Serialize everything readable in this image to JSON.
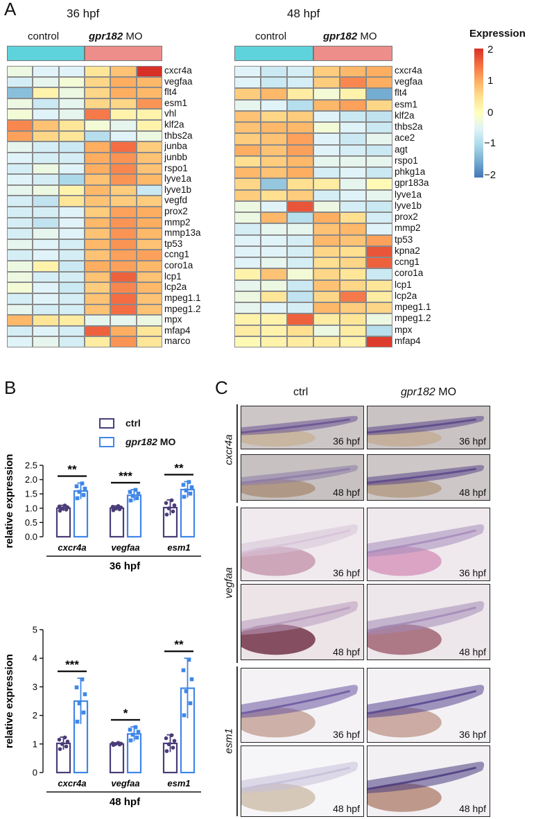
{
  "panel_a": {
    "letter": "A",
    "scale": {
      "title": "Expression",
      "ticks": [
        "2",
        "1",
        "0",
        "−1",
        "−2"
      ]
    },
    "heatmaps": [
      {
        "title": "36 hpf",
        "group_control": "control",
        "group_mo_gene": "gpr182",
        "group_mo_suffix": " MO",
        "genes": [
          "cxcr4a",
          "vegfaa",
          "flt4",
          "esm1",
          "vhl",
          "klf2a",
          "thbs2a",
          "junba",
          "junbb",
          "rspo1",
          "lyve1a",
          "lyve1b",
          "vegfd",
          "prox2",
          "mmp2",
          "mmp13a",
          "tp53",
          "ccng1",
          "coro1a",
          "lcp1",
          "lcp2a",
          "mpeg1.1",
          "mpeg1.2",
          "mpx",
          "mfap4",
          "marco"
        ],
        "values": [
          [
            -0.3,
            -0.5,
            -0.5,
            0.4,
            0.8,
            2.0
          ],
          [
            -0.6,
            -0.4,
            -0.2,
            0.6,
            1.0,
            0.9
          ],
          [
            -1.3,
            0.2,
            -0.3,
            0.6,
            1.0,
            0.9
          ],
          [
            -0.3,
            -0.7,
            -0.4,
            0.6,
            0.6,
            1.2
          ],
          [
            -0.2,
            -0.5,
            -0.4,
            1.4,
            0.2,
            0.2
          ],
          [
            1.3,
            0.8,
            0.4,
            -0.2,
            -0.4,
            0.2
          ],
          [
            1.1,
            0.6,
            0.4,
            -0.9,
            -0.5,
            -0.3
          ],
          [
            -0.4,
            -0.6,
            -0.7,
            1.0,
            1.5,
            0.7
          ],
          [
            -0.5,
            -0.6,
            -0.6,
            1.0,
            1.2,
            0.8
          ],
          [
            -0.6,
            -0.3,
            -0.5,
            1.0,
            1.3,
            0.8
          ],
          [
            -0.5,
            -0.6,
            -1.0,
            0.8,
            1.2,
            0.9
          ],
          [
            -0.4,
            -0.3,
            0.2,
            0.9,
            0.7,
            -0.7
          ],
          [
            -0.6,
            -0.8,
            0.4,
            0.8,
            0.7,
            0.7
          ],
          [
            -0.6,
            -0.6,
            -0.5,
            0.7,
            1.1,
            1.0
          ],
          [
            -0.6,
            -0.8,
            -0.5,
            0.9,
            1.2,
            1.0
          ],
          [
            -0.6,
            -0.4,
            -0.5,
            0.8,
            1.2,
            0.9
          ],
          [
            -0.4,
            -0.5,
            -0.6,
            0.9,
            1.2,
            0.8
          ],
          [
            -0.6,
            -0.5,
            -0.6,
            0.8,
            1.1,
            1.1
          ],
          [
            -0.3,
            0.2,
            -0.7,
            1.0,
            1.1,
            0.9
          ],
          [
            -0.3,
            -0.6,
            -0.6,
            0.8,
            1.6,
            0.8
          ],
          [
            -0.2,
            -0.5,
            -0.7,
            0.7,
            1.3,
            0.9
          ],
          [
            -0.6,
            -0.5,
            -0.6,
            0.8,
            1.5,
            0.8
          ],
          [
            -0.4,
            -0.6,
            -0.6,
            0.8,
            1.5,
            0.8
          ],
          [
            0.9,
            0.4,
            0.3,
            -0.4,
            -0.4,
            -0.3
          ],
          [
            -0.6,
            -0.5,
            -0.6,
            1.6,
            1.0,
            0.4
          ],
          [
            -0.5,
            -0.4,
            -0.6,
            0.3,
            1.2,
            0.4
          ]
        ]
      },
      {
        "title": "48 hpf",
        "group_control": "control",
        "group_mo_gene": "gpr182",
        "group_mo_suffix": " MO",
        "genes": [
          "cxcr4a",
          "vegfaa",
          "flt4",
          "esm1",
          "klf2a",
          "thbs2a",
          "ace2",
          "agt",
          "rspo1",
          "phkg1a",
          "gpr183a",
          "lyve1a",
          "lyve1b",
          "prox2",
          "mmp2",
          "tp53",
          "kpna2",
          "ccng1",
          "coro1a",
          "lcp1",
          "lcp2a",
          "mpeg1.1",
          "mpeg1.2",
          "mpx",
          "mfap4"
        ],
        "values": [
          [
            -0.5,
            -0.7,
            -0.6,
            0.7,
            0.9,
            1.0
          ],
          [
            -0.5,
            -0.7,
            -0.6,
            0.7,
            1.3,
            1.0
          ],
          [
            0.7,
            0.9,
            0.3,
            -0.2,
            0.2,
            -1.5
          ],
          [
            -0.4,
            -0.5,
            -0.9,
            0.9,
            1.1,
            0.6
          ],
          [
            0.8,
            0.6,
            0.7,
            -0.5,
            -0.7,
            -0.8
          ],
          [
            0.8,
            0.9,
            0.9,
            -0.2,
            -0.5,
            -0.7
          ],
          [
            0.7,
            0.8,
            1.1,
            -0.5,
            -0.7,
            -0.4
          ],
          [
            1.0,
            0.8,
            1.1,
            -0.5,
            -0.6,
            -0.7
          ],
          [
            0.5,
            0.7,
            0.9,
            -0.4,
            -0.4,
            -0.4
          ],
          [
            0.9,
            0.8,
            1.0,
            -0.6,
            -0.5,
            -0.7
          ],
          [
            0.6,
            -1.2,
            0.5,
            0.3,
            -0.4,
            0.1
          ],
          [
            0.7,
            0.5,
            0.7,
            -0.6,
            -0.5,
            -0.4
          ],
          [
            -0.3,
            -0.5,
            1.7,
            -0.3,
            -0.6,
            -0.7
          ],
          [
            -0.3,
            0.9,
            -0.9,
            1.0,
            0.5,
            -0.6
          ],
          [
            -0.6,
            -0.4,
            -0.4,
            0.8,
            0.9,
            -0.5
          ],
          [
            -0.5,
            -0.5,
            -0.6,
            0.9,
            0.8,
            1.1
          ],
          [
            -0.5,
            -0.5,
            -0.6,
            0.6,
            0.5,
            1.7
          ],
          [
            -0.5,
            -0.4,
            -0.6,
            0.5,
            0.6,
            1.6
          ],
          [
            0.2,
            0.8,
            -0.2,
            0.6,
            0.4,
            -0.7
          ],
          [
            -0.4,
            -0.3,
            -0.7,
            0.8,
            0.6,
            0.4
          ],
          [
            -0.3,
            0.4,
            -0.8,
            0.6,
            1.4,
            0.3
          ],
          [
            -0.4,
            -0.5,
            -0.6,
            0.9,
            0.7,
            0.6
          ],
          [
            0.2,
            0.2,
            1.6,
            0.3,
            0.4,
            -0.3
          ],
          [
            0.3,
            0.2,
            0.5,
            -0.3,
            0.3,
            -0.9
          ],
          [
            0.1,
            0.2,
            0.3,
            0.3,
            0.2,
            1.9
          ]
        ]
      }
    ]
  },
  "panel_b": {
    "letter": "B",
    "legend": {
      "ctrl": "ctrl",
      "mo_gene": "gpr182",
      "mo_suffix": " MO"
    },
    "colors": {
      "ctrl": "#4a3c78",
      "mo": "#3f86e8"
    },
    "chart_data": [
      {
        "type": "bar",
        "title": "36 hpf",
        "ylabel": "relative expression",
        "ylim": [
          0,
          2.5
        ],
        "yticks": [
          "0.0",
          "0.5",
          "1.0",
          "1.5",
          "2.0",
          "2.5"
        ],
        "categories": [
          "cxcr4a",
          "vegfaa",
          "esm1"
        ],
        "series": [
          {
            "name": "ctrl",
            "values": [
              1.0,
              1.0,
              1.02
            ],
            "errors": [
              0.1,
              0.08,
              0.27
            ]
          },
          {
            "name": "gpr182 MO",
            "values": [
              1.6,
              1.45,
              1.65
            ],
            "errors": [
              0.28,
              0.2,
              0.28
            ]
          }
        ],
        "significance": [
          "**",
          "***",
          "**"
        ]
      },
      {
        "type": "bar",
        "title": "48 hpf",
        "ylabel": "relative expression",
        "ylim": [
          0,
          5
        ],
        "yticks": [
          "0",
          "1",
          "2",
          "3",
          "4",
          "5"
        ],
        "categories": [
          "cxcr4a",
          "vegfaa",
          "esm1"
        ],
        "series": [
          {
            "name": "ctrl",
            "values": [
              1.02,
              1.0,
              1.02
            ],
            "errors": [
              0.22,
              0.04,
              0.3
            ]
          },
          {
            "name": "gpr182 MO",
            "values": [
              2.5,
              1.35,
              2.95
            ],
            "errors": [
              0.8,
              0.25,
              1.05
            ]
          }
        ],
        "significance": [
          "***",
          "*",
          "**"
        ]
      }
    ]
  },
  "panel_c": {
    "letter": "C",
    "col_ctrl": "ctrl",
    "col_mo_gene": "gpr182",
    "col_mo_suffix": " MO",
    "genes": [
      "cxcr4a",
      "vegfaa",
      "esm1"
    ],
    "stage_36": "36 hpf",
    "stage_48": "48 hpf"
  }
}
